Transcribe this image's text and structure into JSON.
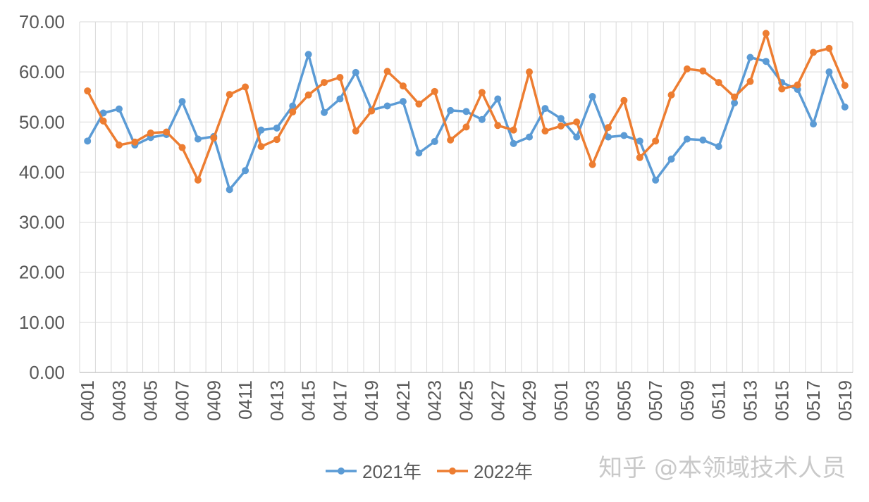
{
  "chart_data": {
    "type": "line",
    "title": "",
    "xlabel": "",
    "ylabel": "",
    "ylim": [
      0,
      70
    ],
    "yticks": [
      "0.00",
      "10.00",
      "20.00",
      "30.00",
      "40.00",
      "50.00",
      "60.00",
      "70.00"
    ],
    "grid": "vertical and horizontal",
    "legend": "bottom",
    "categories": [
      "0401",
      "0402",
      "0403",
      "0404",
      "0405",
      "0406",
      "0407",
      "0408",
      "0409",
      "0410",
      "0411",
      "0412",
      "0413",
      "0414",
      "0415",
      "0416",
      "0417",
      "0418",
      "0419",
      "0420",
      "0421",
      "0422",
      "0423",
      "0424",
      "0425",
      "0426",
      "0427",
      "0428",
      "0429",
      "0430",
      "0501",
      "0502",
      "0503",
      "0504",
      "0505",
      "0506",
      "0507",
      "0508",
      "0509",
      "0510",
      "0511",
      "0512",
      "0513",
      "0514",
      "0515",
      "0516",
      "0517",
      "0518",
      "0519"
    ],
    "x_tick_labels": [
      "0401",
      "0403",
      "0405",
      "0407",
      "0409",
      "0411",
      "0413",
      "0415",
      "0417",
      "0419",
      "0421",
      "0423",
      "0425",
      "0427",
      "0429",
      "0501",
      "0503",
      "0505",
      "0507",
      "0509",
      "0511",
      "0513",
      "0515",
      "0517",
      "0519"
    ],
    "series": [
      {
        "name": "2021年",
        "color": "#5b9bd5",
        "values": [
          46.2,
          51.8,
          52.6,
          45.4,
          46.9,
          47.5,
          54.1,
          46.6,
          47.1,
          36.5,
          40.3,
          48.4,
          48.8,
          53.2,
          63.5,
          51.9,
          54.6,
          59.9,
          52.4,
          53.2,
          54.1,
          43.8,
          46.1,
          52.3,
          52.1,
          50.5,
          54.6,
          45.7,
          47.0,
          52.7,
          50.7,
          47.0,
          55.1,
          47.0,
          47.3,
          46.2,
          38.4,
          42.6,
          46.6,
          46.4,
          45.1,
          53.8,
          62.9,
          62.1,
          57.9,
          56.5,
          49.6,
          60.0,
          53.0
        ]
      },
      {
        "name": "2022年",
        "color": "#ed7d31",
        "values": [
          56.2,
          50.2,
          45.4,
          46.0,
          47.8,
          48.0,
          44.9,
          38.4,
          46.8,
          55.5,
          57.0,
          45.1,
          46.5,
          52.0,
          55.4,
          57.9,
          58.9,
          48.2,
          52.2,
          60.1,
          57.2,
          53.6,
          56.1,
          46.4,
          49.0,
          55.9,
          49.3,
          48.4,
          60.0,
          48.2,
          49.2,
          50.0,
          41.5,
          48.9,
          54.3,
          42.9,
          46.2,
          55.4,
          60.6,
          60.2,
          57.9,
          55.0,
          58.1,
          67.7,
          56.6,
          57.4,
          63.9,
          64.7,
          57.3
        ]
      }
    ]
  },
  "watermark": "知乎 @本领域技术人员"
}
